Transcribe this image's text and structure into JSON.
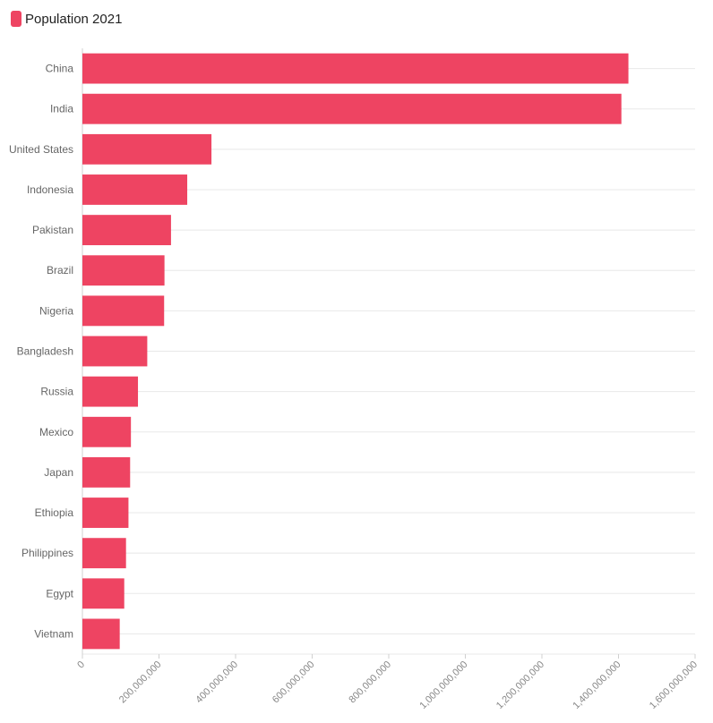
{
  "chart_data": {
    "type": "bar",
    "orientation": "horizontal",
    "categories": [
      "China",
      "India",
      "United States",
      "Indonesia",
      "Pakistan",
      "Brazil",
      "Nigeria",
      "Bangladesh",
      "Russia",
      "Mexico",
      "Japan",
      "Ethiopia",
      "Philippines",
      "Egypt",
      "Vietnam"
    ],
    "series": [
      {
        "name": "Population 2021",
        "color": "#ee4462",
        "values": [
          1425893465,
          1407563842,
          336997624,
          273753191,
          231402117,
          214326223,
          213401323,
          169356251,
          145102755,
          126705138,
          124612530,
          120283026,
          113880328,
          109262178,
          97468029
        ]
      }
    ],
    "xlim": [
      0,
      1600000000
    ],
    "xticks": [
      0,
      200000000,
      400000000,
      600000000,
      800000000,
      1000000000,
      1200000000,
      1400000000,
      1600000000
    ],
    "xtick_labels": [
      "0",
      "200,000,000",
      "400,000,000",
      "600,000,000",
      "800,000,000",
      "1,000,000,000",
      "1,200,000,000",
      "1,400,000,000",
      "1,600,000,000"
    ],
    "grid": true,
    "legend": "top-left"
  }
}
